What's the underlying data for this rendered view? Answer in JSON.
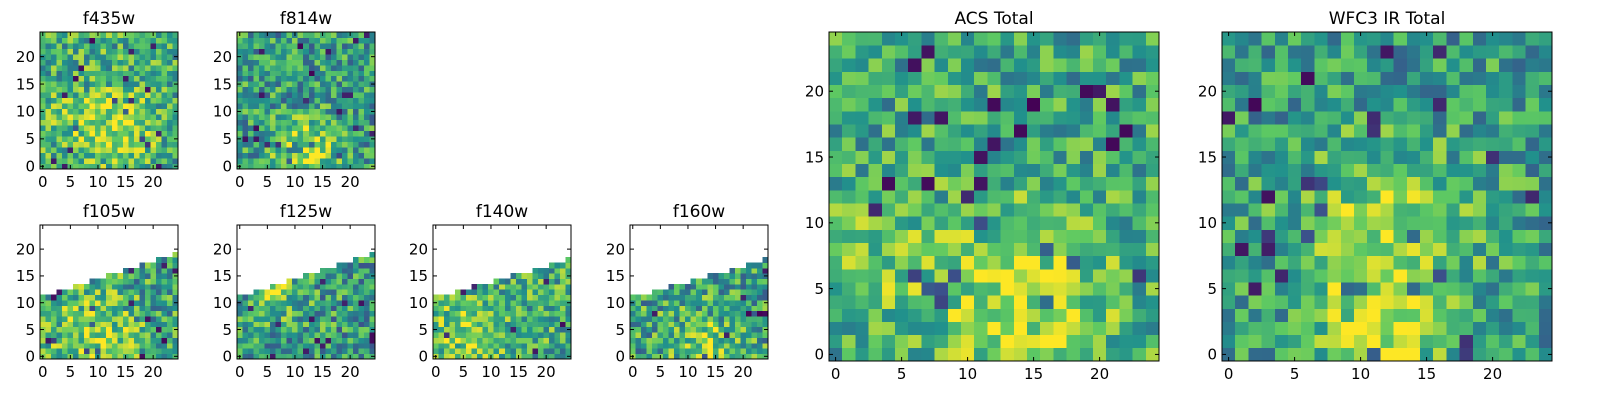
{
  "figure": {
    "background": "#ffffff"
  },
  "colormap": {
    "name": "viridis",
    "stops": [
      "#440154",
      "#3b528b",
      "#21918c",
      "#5ec962",
      "#fde725"
    ]
  },
  "chart_data": [
    {
      "type": "heatmap",
      "title": "f435w",
      "xlabel": "",
      "ylabel": "",
      "xlim": [
        -0.5,
        24.5
      ],
      "ylim": [
        -0.5,
        24.5
      ],
      "xticks": [
        0,
        5,
        10,
        15,
        20
      ],
      "yticks": [
        0,
        5,
        10,
        15,
        20
      ],
      "grid_size": 25,
      "coverage": "full",
      "mean_level": 0.62,
      "noise": 0.28,
      "bright_spots": [
        {
          "x": 13,
          "y": 7,
          "amp": 0.25,
          "r": 5
        },
        {
          "x": 3,
          "y": 9,
          "amp": 0.15,
          "r": 3
        }
      ]
    },
    {
      "type": "heatmap",
      "title": "f814w",
      "xlabel": "",
      "ylabel": "",
      "xlim": [
        -0.5,
        24.5
      ],
      "ylim": [
        -0.5,
        24.5
      ],
      "xticks": [
        0,
        5,
        10,
        15,
        20
      ],
      "yticks": [
        0,
        5,
        10,
        15,
        20
      ],
      "grid_size": 25,
      "coverage": "full",
      "mean_level": 0.55,
      "noise": 0.28,
      "bright_spots": [
        {
          "x": 12,
          "y": 3,
          "amp": 0.35,
          "r": 4
        }
      ]
    },
    {
      "type": "heatmap",
      "title": "f105w",
      "xlabel": "",
      "ylabel": "",
      "xlim": [
        -0.5,
        24.5
      ],
      "ylim": [
        -0.5,
        24.5
      ],
      "xticks": [
        0,
        5,
        10,
        15,
        20
      ],
      "yticks": [
        0,
        5,
        10,
        15,
        20
      ],
      "grid_size": 25,
      "coverage": "wedge",
      "coverage_left_y": 11,
      "coverage_right_y": 19,
      "mean_level": 0.6,
      "noise": 0.3,
      "bright_spots": [
        {
          "x": 9,
          "y": 4,
          "amp": 0.25,
          "r": 5
        }
      ]
    },
    {
      "type": "heatmap",
      "title": "f125w",
      "xlabel": "",
      "ylabel": "",
      "xlim": [
        -0.5,
        24.5
      ],
      "ylim": [
        -0.5,
        24.5
      ],
      "xticks": [
        0,
        5,
        10,
        15,
        20
      ],
      "yticks": [
        0,
        5,
        10,
        15,
        20
      ],
      "grid_size": 25,
      "coverage": "wedge",
      "coverage_left_y": 11,
      "coverage_right_y": 19,
      "mean_level": 0.55,
      "noise": 0.3,
      "bright_spots": [
        {
          "x": 7,
          "y": 11,
          "amp": 0.25,
          "r": 3
        }
      ]
    },
    {
      "type": "heatmap",
      "title": "f140w",
      "xlabel": "",
      "ylabel": "",
      "xlim": [
        -0.5,
        24.5
      ],
      "ylim": [
        -0.5,
        24.5
      ],
      "xticks": [
        0,
        5,
        10,
        15,
        20
      ],
      "yticks": [
        0,
        5,
        10,
        15,
        20
      ],
      "grid_size": 25,
      "coverage": "wedge",
      "coverage_left_y": 11,
      "coverage_right_y": 18,
      "mean_level": 0.62,
      "noise": 0.28,
      "bright_spots": [
        {
          "x": 6,
          "y": 5,
          "amp": 0.2,
          "r": 5
        }
      ]
    },
    {
      "type": "heatmap",
      "title": "f160w",
      "xlabel": "",
      "ylabel": "",
      "xlim": [
        -0.5,
        24.5
      ],
      "ylim": [
        -0.5,
        24.5
      ],
      "xticks": [
        0,
        5,
        10,
        15,
        20
      ],
      "yticks": [
        0,
        5,
        10,
        15,
        20
      ],
      "grid_size": 25,
      "coverage": "wedge",
      "coverage_left_y": 11,
      "coverage_right_y": 18,
      "mean_level": 0.58,
      "noise": 0.3,
      "bright_spots": [
        {
          "x": 12,
          "y": 2,
          "amp": 0.25,
          "r": 4
        }
      ]
    },
    {
      "type": "heatmap",
      "title": "ACS Total",
      "xlabel": "",
      "ylabel": "",
      "xlim": [
        -0.5,
        24.5
      ],
      "ylim": [
        -0.5,
        24.5
      ],
      "xticks": [
        0,
        5,
        10,
        15,
        20
      ],
      "yticks": [
        0,
        5,
        10,
        15,
        20
      ],
      "grid_size": 25,
      "coverage": "full",
      "mean_level": 0.6,
      "noise": 0.25,
      "bright_spots": [
        {
          "x": 14,
          "y": 4,
          "amp": 0.3,
          "r": 5
        },
        {
          "x": 3,
          "y": 7,
          "amp": 0.15,
          "r": 3
        }
      ]
    },
    {
      "type": "heatmap",
      "title": "WFC3 IR Total",
      "xlabel": "",
      "ylabel": "",
      "xlim": [
        -0.5,
        24.5
      ],
      "ylim": [
        -0.5,
        24.5
      ],
      "xticks": [
        0,
        5,
        10,
        15,
        20
      ],
      "yticks": [
        0,
        5,
        10,
        15,
        20
      ],
      "grid_size": 25,
      "coverage": "full",
      "mean_level": 0.55,
      "noise": 0.25,
      "bright_spots": [
        {
          "x": 12,
          "y": 9,
          "amp": 0.3,
          "r": 5
        },
        {
          "x": 12,
          "y": 2,
          "amp": 0.3,
          "r": 3
        }
      ]
    }
  ]
}
